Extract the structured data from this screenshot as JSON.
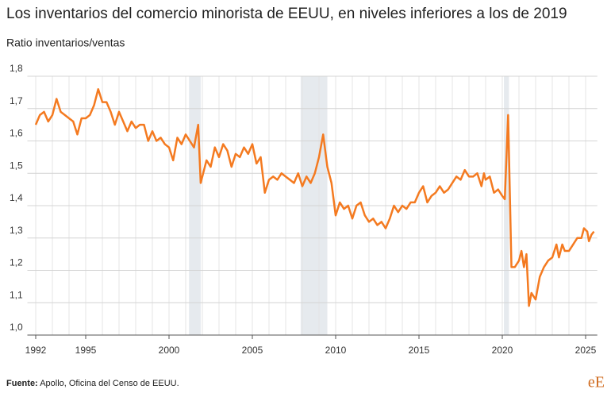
{
  "chart_data": {
    "type": "line",
    "title": "Los inventarios del comercio minorista de EEUU, en niveles inferiores a los de 2019",
    "subtitle": "Ratio inventarios/ventas",
    "source_label": "Fuente:",
    "source_text": "Apollo, Oficina del Censo de EEUU.",
    "logo": "eE",
    "xlim": [
      1991.5,
      2025.7
    ],
    "ylim": [
      1.0,
      1.8
    ],
    "xticks": [
      1992,
      1995,
      2000,
      2005,
      2010,
      2015,
      2020,
      2025
    ],
    "yticks": [
      {
        "value": 1.0,
        "label": "1,0"
      },
      {
        "value": 1.1,
        "label": "1,1"
      },
      {
        "value": 1.2,
        "label": "1,2"
      },
      {
        "value": 1.3,
        "label": "1,3"
      },
      {
        "value": 1.4,
        "label": "1,4"
      },
      {
        "value": 1.5,
        "label": "1,5"
      },
      {
        "value": 1.6,
        "label": "1,6"
      },
      {
        "value": 1.7,
        "label": "1,7"
      },
      {
        "value": 1.8,
        "label": "1,8"
      }
    ],
    "grid": true,
    "recessions": [
      [
        2001.2,
        2001.9
      ],
      [
        2007.9,
        2009.5
      ],
      [
        2020.1,
        2020.4
      ]
    ],
    "recession_color": "#e6eaee",
    "x": [
      1992.0,
      1992.25,
      1992.5,
      1992.75,
      1993.0,
      1993.25,
      1993.5,
      1993.75,
      1994.0,
      1994.25,
      1994.5,
      1994.75,
      1995.0,
      1995.25,
      1995.5,
      1995.75,
      1996.0,
      1996.25,
      1996.5,
      1996.75,
      1997.0,
      1997.25,
      1997.5,
      1997.75,
      1998.0,
      1998.25,
      1998.5,
      1998.75,
      1999.0,
      1999.25,
      1999.5,
      1999.75,
      2000.0,
      2000.25,
      2000.5,
      2000.75,
      2001.0,
      2001.25,
      2001.5,
      2001.75,
      2001.9,
      2002.25,
      2002.5,
      2002.75,
      2003.0,
      2003.25,
      2003.5,
      2003.75,
      2004.0,
      2004.25,
      2004.5,
      2004.75,
      2005.0,
      2005.25,
      2005.5,
      2005.75,
      2006.0,
      2006.25,
      2006.5,
      2006.75,
      2007.0,
      2007.25,
      2007.5,
      2007.75,
      2008.0,
      2008.25,
      2008.5,
      2008.75,
      2009.0,
      2009.25,
      2009.5,
      2009.75,
      2010.0,
      2010.25,
      2010.5,
      2010.75,
      2011.0,
      2011.25,
      2011.5,
      2011.75,
      2012.0,
      2012.25,
      2012.5,
      2012.75,
      2013.0,
      2013.25,
      2013.5,
      2013.75,
      2014.0,
      2014.25,
      2014.5,
      2014.75,
      2015.0,
      2015.25,
      2015.5,
      2015.75,
      2016.0,
      2016.25,
      2016.5,
      2016.75,
      2017.0,
      2017.25,
      2017.5,
      2017.75,
      2018.0,
      2018.25,
      2018.5,
      2018.75,
      2018.9,
      2019.0,
      2019.25,
      2019.5,
      2019.75,
      2020.0,
      2020.15,
      2020.35,
      2020.55,
      2020.75,
      2021.0,
      2021.15,
      2021.3,
      2021.45,
      2021.6,
      2021.75,
      2022.0,
      2022.25,
      2022.5,
      2022.75,
      2023.0,
      2023.25,
      2023.4,
      2023.6,
      2023.75,
      2024.0,
      2024.25,
      2024.5,
      2024.75,
      2024.9,
      2025.1,
      2025.2,
      2025.35,
      2025.5
    ],
    "series": [
      {
        "name": "Ratio inventarios/ventas",
        "color": "#f47a20",
        "values": [
          1.65,
          1.68,
          1.69,
          1.66,
          1.68,
          1.73,
          1.69,
          1.68,
          1.67,
          1.66,
          1.62,
          1.67,
          1.67,
          1.68,
          1.71,
          1.76,
          1.72,
          1.72,
          1.69,
          1.65,
          1.69,
          1.66,
          1.63,
          1.66,
          1.64,
          1.65,
          1.65,
          1.6,
          1.63,
          1.6,
          1.61,
          1.59,
          1.58,
          1.54,
          1.61,
          1.59,
          1.62,
          1.6,
          1.58,
          1.65,
          1.47,
          1.54,
          1.52,
          1.58,
          1.55,
          1.59,
          1.57,
          1.52,
          1.56,
          1.55,
          1.58,
          1.56,
          1.59,
          1.53,
          1.55,
          1.44,
          1.48,
          1.49,
          1.48,
          1.5,
          1.49,
          1.48,
          1.47,
          1.5,
          1.46,
          1.49,
          1.47,
          1.5,
          1.55,
          1.62,
          1.52,
          1.47,
          1.37,
          1.41,
          1.39,
          1.4,
          1.36,
          1.4,
          1.41,
          1.37,
          1.35,
          1.36,
          1.34,
          1.35,
          1.33,
          1.36,
          1.4,
          1.38,
          1.4,
          1.39,
          1.41,
          1.41,
          1.44,
          1.46,
          1.41,
          1.43,
          1.44,
          1.46,
          1.44,
          1.45,
          1.47,
          1.49,
          1.48,
          1.51,
          1.49,
          1.49,
          1.5,
          1.46,
          1.5,
          1.48,
          1.49,
          1.44,
          1.45,
          1.43,
          1.42,
          1.68,
          1.21,
          1.21,
          1.23,
          1.26,
          1.21,
          1.25,
          1.09,
          1.13,
          1.11,
          1.18,
          1.21,
          1.23,
          1.24,
          1.28,
          1.24,
          1.28,
          1.26,
          1.26,
          1.28,
          1.3,
          1.3,
          1.33,
          1.32,
          1.29,
          1.31,
          1.32
        ]
      }
    ]
  }
}
